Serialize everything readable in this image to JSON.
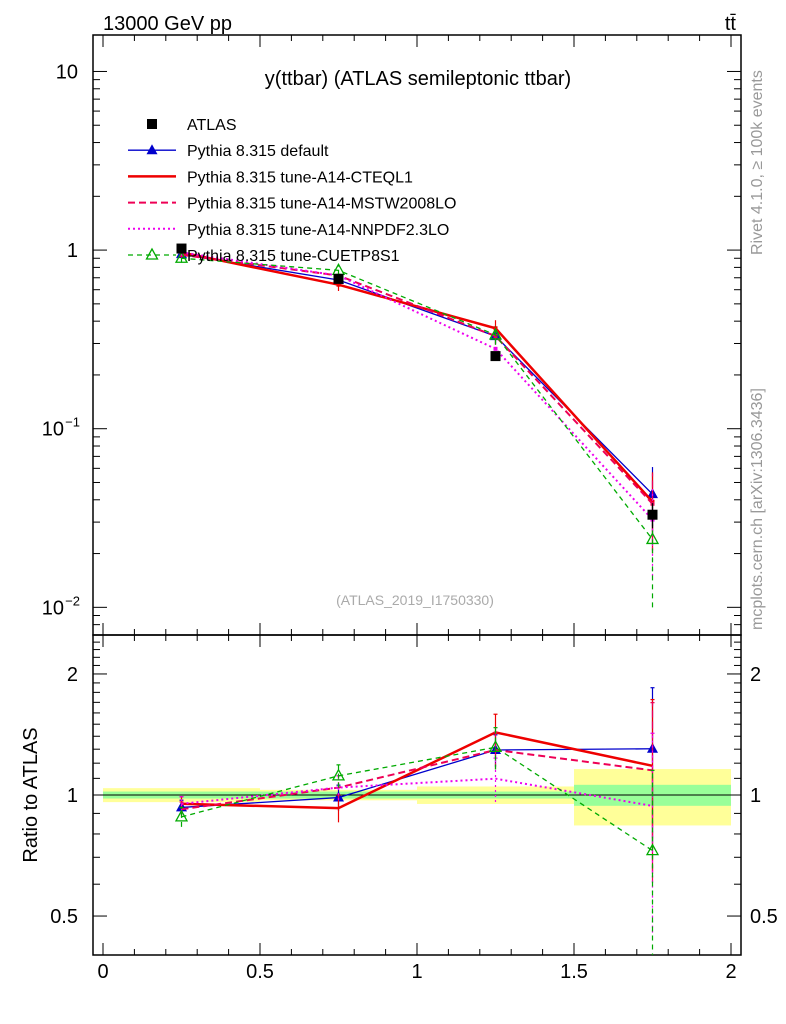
{
  "header": {
    "left": "13000 GeV pp",
    "right": "tt̄"
  },
  "side_text": {
    "rivet": "Rivet 4.1.0, ≥ 100k events",
    "mcplots": "mcplots.cern.ch [arXiv:1306.3436]"
  },
  "chart_data": {
    "type": "line",
    "title": "y(ttbar) (ATLAS semileptonic ttbar)",
    "watermark": "(ATLAS_2019_I1750330)",
    "xlabel": "",
    "ylabel_main": "",
    "ylabel_ratio": "Ratio to ATLAS",
    "xlim": [
      0,
      2
    ],
    "ylim_main": [
      0.007,
      16
    ],
    "ylim_ratio": [
      0.4,
      2.5
    ],
    "x_ticks": [
      "0",
      "0.5",
      "1",
      "1.5",
      "2"
    ],
    "x_tick_values": [
      0,
      0.5,
      1,
      1.5,
      2
    ],
    "main_ticks": {
      "labels": [
        "10",
        "1",
        "10",
        "10"
      ],
      "exponents": [
        "",
        "",
        "−1",
        "−2"
      ],
      "values": [
        10,
        1,
        0.1,
        0.01
      ]
    },
    "ratio_ticks": {
      "labels": [
        "2",
        "1",
        "0.5"
      ],
      "values": [
        2,
        1,
        0.5
      ]
    },
    "bins": [
      0.0,
      0.5,
      1.0,
      1.5,
      2.0
    ],
    "x": [
      0.25,
      0.75,
      1.25,
      1.75
    ],
    "data": {
      "name": "ATLAS",
      "values": [
        1.02,
        0.69,
        0.255,
        0.033
      ],
      "rel_stat": [
        0.02,
        0.02,
        0.02,
        0.06
      ],
      "rel_total": [
        0.04,
        0.03,
        0.05,
        0.16
      ]
    },
    "series": [
      {
        "name": "Pythia 8.315 default",
        "color": "#0000cc",
        "style": "solid-triangle",
        "values": [
          0.95,
          0.68,
          0.33,
          0.043
        ],
        "errors": [
          0.04,
          0.05,
          0.03,
          0.018
        ]
      },
      {
        "name": "Pythia 8.315 tune-A14-CTEQL1",
        "color": "#ee0000",
        "style": "thick",
        "values": [
          0.97,
          0.64,
          0.365,
          0.039
        ],
        "errors": [
          0.04,
          0.05,
          0.04,
          0.018
        ]
      },
      {
        "name": "Pythia 8.315 tune-A14-MSTW2008LO",
        "color": "#ee0055",
        "style": "dashed",
        "values": [
          0.94,
          0.72,
          0.33,
          0.038
        ],
        "errors": [
          0.04,
          0.05,
          0.035,
          0.018
        ]
      },
      {
        "name": "Pythia 8.315 tune-A14-NNPDF2.3LO",
        "color": "#ee00ee",
        "style": "dotted",
        "values": [
          0.97,
          0.72,
          0.28,
          0.031
        ],
        "errors": [
          0.04,
          0.05,
          0.035,
          0.016
        ]
      },
      {
        "name": "Pythia 8.315 tune-CUETP8S1",
        "color": "#00aa00",
        "style": "dashed-open-triangle",
        "values": [
          0.9,
          0.77,
          0.335,
          0.024
        ],
        "errors": [
          0.05,
          0.05,
          0.04,
          0.014
        ]
      }
    ]
  }
}
